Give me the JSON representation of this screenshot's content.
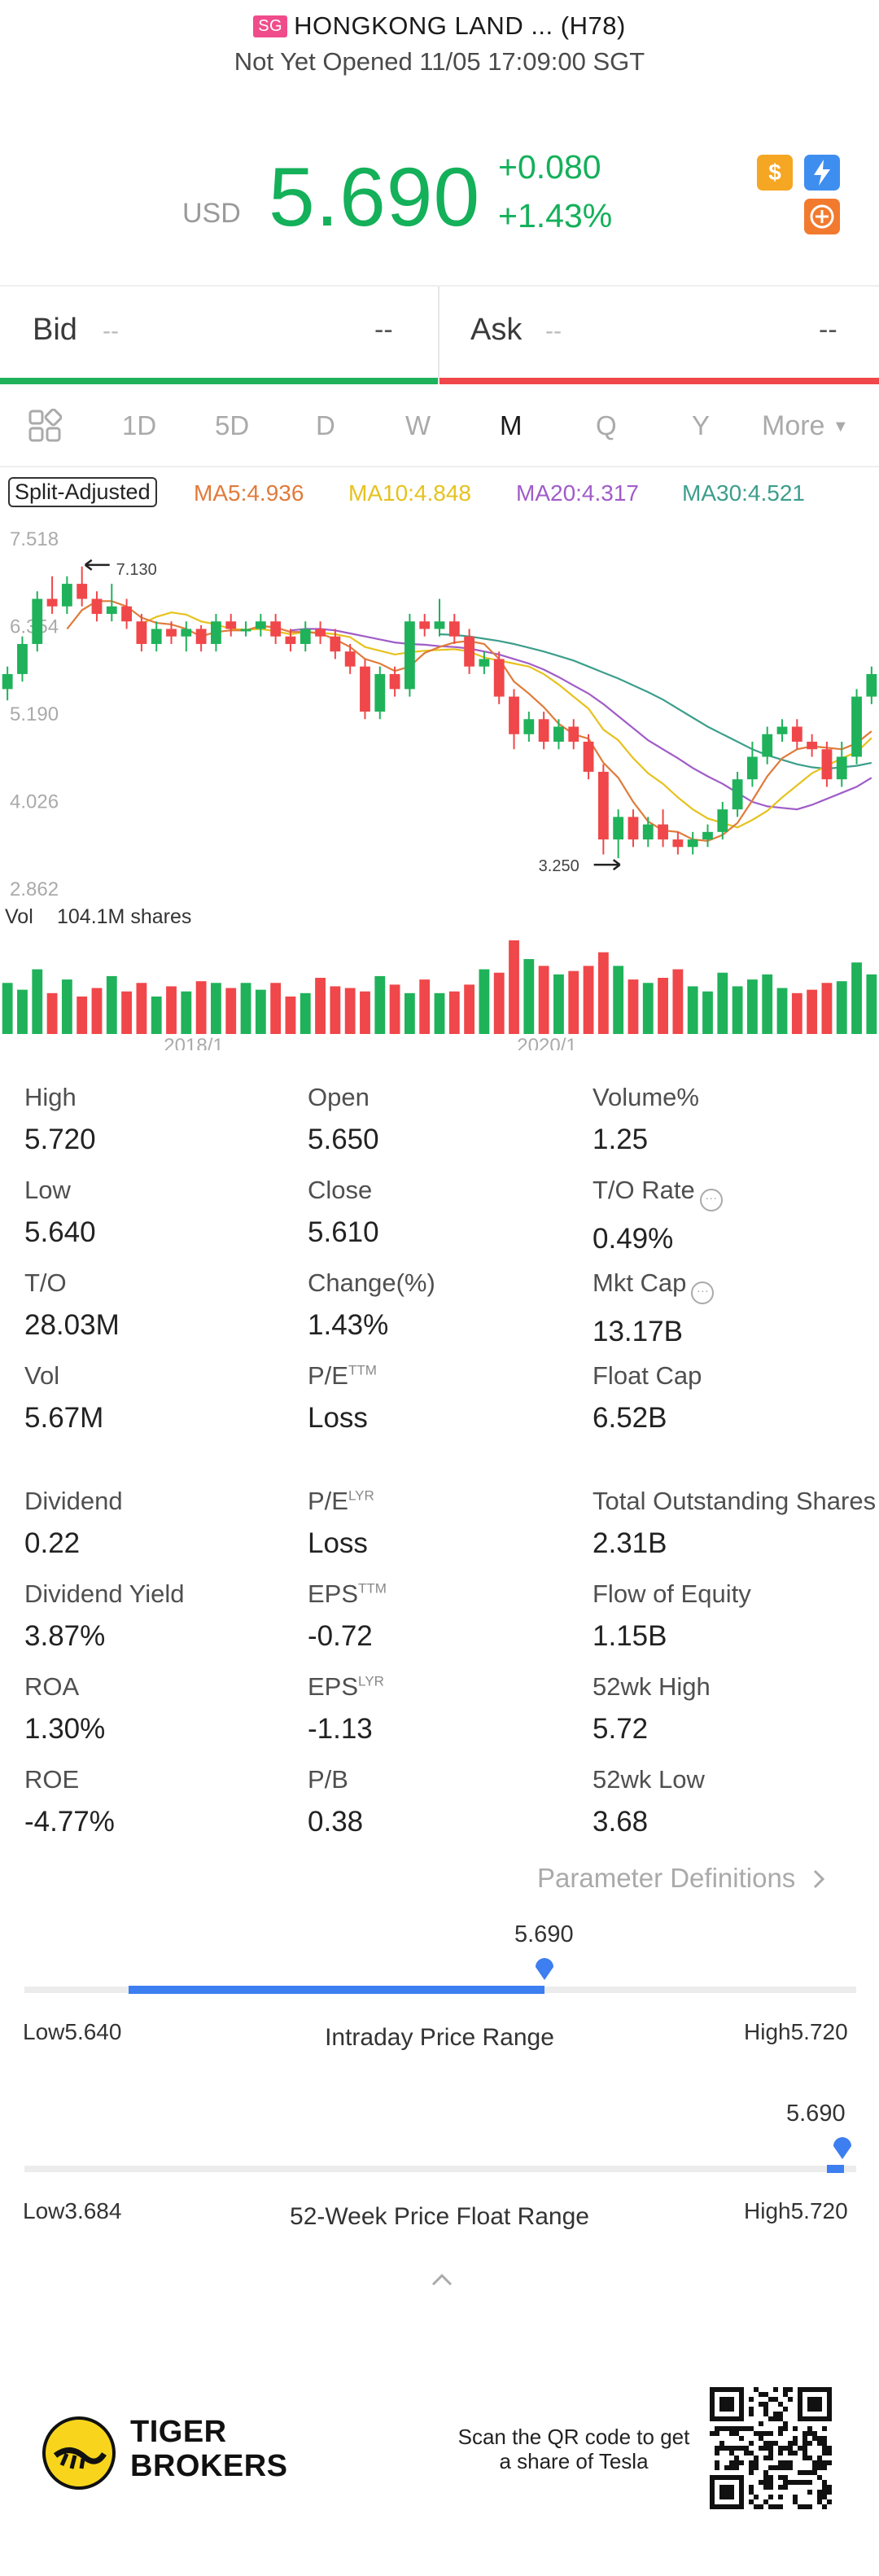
{
  "header": {
    "market_flag": "SG",
    "title": "HONGKONG LAND ... (H78)",
    "status": "Not Yet Opened 11/05 17:09:00 SGT"
  },
  "quote": {
    "currency": "USD",
    "price": "5.690",
    "change": "+0.080",
    "change_pct": "+1.43%",
    "color_up": "#14b05a",
    "icons": [
      "dollar-icon",
      "flash-icon",
      "options-icon"
    ]
  },
  "bidask": {
    "bid_label": "Bid",
    "bid_size": "--",
    "bid_price": "--",
    "ask_label": "Ask",
    "ask_size": "--",
    "ask_price": "--"
  },
  "tabs": {
    "items": [
      "1D",
      "5D",
      "D",
      "W",
      "M",
      "Q",
      "Y",
      "More"
    ],
    "active": "M"
  },
  "ma_legend": {
    "split_adjusted": "Split-Adjusted",
    "ma5": "MA5:4.936",
    "ma10": "MA10:4.848",
    "ma20": "MA20:4.317",
    "ma30": "MA30:4.521",
    "colors": {
      "ma5": "#e07b3a",
      "ma10": "#e6c21e",
      "ma20": "#a05cc8",
      "ma30": "#3c9e8c"
    }
  },
  "chart_data": {
    "type": "candlestick",
    "period": "monthly",
    "y_ticks": [
      "7.518",
      "6.354",
      "5.190",
      "4.026",
      "2.862"
    ],
    "ylim": [
      2.862,
      7.518
    ],
    "x_ticks": [
      "2018/1",
      "2020/1"
    ],
    "max_marker": "7.130",
    "min_marker": "3.250",
    "volume_label": "Vol",
    "volume_value": "104.1M shares",
    "candles": [
      [
        5.5,
        5.7,
        5.35,
        5.8,
        1
      ],
      [
        5.7,
        6.1,
        5.6,
        6.2,
        1
      ],
      [
        6.1,
        6.7,
        6.0,
        6.8,
        1
      ],
      [
        6.7,
        6.6,
        6.5,
        7.0,
        0
      ],
      [
        6.6,
        6.9,
        6.5,
        7.0,
        1
      ],
      [
        6.9,
        6.7,
        6.6,
        7.13,
        0
      ],
      [
        6.7,
        6.5,
        6.4,
        6.8,
        0
      ],
      [
        6.5,
        6.6,
        6.4,
        6.9,
        1
      ],
      [
        6.6,
        6.4,
        6.3,
        6.7,
        0
      ],
      [
        6.4,
        6.1,
        6.0,
        6.5,
        0
      ],
      [
        6.1,
        6.3,
        6.0,
        6.4,
        1
      ],
      [
        6.3,
        6.2,
        6.1,
        6.4,
        0
      ],
      [
        6.2,
        6.3,
        6.0,
        6.4,
        1
      ],
      [
        6.3,
        6.1,
        6.0,
        6.35,
        0
      ],
      [
        6.1,
        6.4,
        6.0,
        6.5,
        1
      ],
      [
        6.4,
        6.3,
        6.2,
        6.5,
        0
      ],
      [
        6.3,
        6.3,
        6.2,
        6.4,
        1
      ],
      [
        6.3,
        6.4,
        6.2,
        6.5,
        1
      ],
      [
        6.4,
        6.2,
        6.1,
        6.5,
        0
      ],
      [
        6.2,
        6.1,
        6.0,
        6.3,
        0
      ],
      [
        6.1,
        6.3,
        6.0,
        6.4,
        1
      ],
      [
        6.3,
        6.2,
        6.1,
        6.4,
        0
      ],
      [
        6.2,
        6.0,
        5.9,
        6.3,
        0
      ],
      [
        6.0,
        5.8,
        5.7,
        6.1,
        0
      ],
      [
        5.8,
        5.2,
        5.1,
        5.9,
        0
      ],
      [
        5.2,
        5.7,
        5.1,
        5.8,
        1
      ],
      [
        5.7,
        5.5,
        5.4,
        5.8,
        0
      ],
      [
        5.5,
        6.4,
        5.4,
        6.5,
        1
      ],
      [
        6.4,
        6.3,
        6.2,
        6.5,
        0
      ],
      [
        6.3,
        6.4,
        6.2,
        6.7,
        1
      ],
      [
        6.4,
        6.2,
        6.1,
        6.5,
        0
      ],
      [
        6.2,
        5.8,
        5.7,
        6.3,
        0
      ],
      [
        5.8,
        5.9,
        5.7,
        6.0,
        1
      ],
      [
        5.9,
        5.4,
        5.3,
        6.0,
        0
      ],
      [
        5.4,
        4.9,
        4.7,
        5.5,
        0
      ],
      [
        4.9,
        5.1,
        4.8,
        5.2,
        1
      ],
      [
        5.1,
        4.8,
        4.7,
        5.2,
        0
      ],
      [
        4.8,
        5.0,
        4.7,
        5.1,
        1
      ],
      [
        5.0,
        4.8,
        4.7,
        5.1,
        0
      ],
      [
        4.8,
        4.4,
        4.3,
        4.9,
        0
      ],
      [
        4.4,
        3.5,
        3.3,
        4.5,
        0
      ],
      [
        3.5,
        3.8,
        3.25,
        3.9,
        1
      ],
      [
        3.8,
        3.5,
        3.4,
        3.9,
        0
      ],
      [
        3.5,
        3.7,
        3.4,
        3.8,
        1
      ],
      [
        3.7,
        3.5,
        3.4,
        3.9,
        0
      ],
      [
        3.5,
        3.4,
        3.3,
        3.6,
        0
      ],
      [
        3.4,
        3.5,
        3.3,
        3.6,
        1
      ],
      [
        3.5,
        3.6,
        3.4,
        3.7,
        1
      ],
      [
        3.6,
        3.9,
        3.5,
        4.0,
        1
      ],
      [
        3.9,
        4.3,
        3.8,
        4.4,
        1
      ],
      [
        4.3,
        4.6,
        4.2,
        4.8,
        1
      ],
      [
        4.6,
        4.9,
        4.5,
        5.0,
        1
      ],
      [
        4.9,
        5.0,
        4.8,
        5.1,
        1
      ],
      [
        5.0,
        4.8,
        4.7,
        5.1,
        0
      ],
      [
        4.8,
        4.7,
        4.6,
        4.9,
        0
      ],
      [
        4.7,
        4.3,
        4.2,
        4.8,
        0
      ],
      [
        4.3,
        4.6,
        4.2,
        4.8,
        1
      ],
      [
        4.6,
        5.4,
        4.5,
        5.5,
        1
      ],
      [
        5.4,
        5.7,
        5.3,
        5.8,
        1
      ]
    ],
    "volumes": [
      30,
      26,
      38,
      24,
      32,
      22,
      27,
      34,
      25,
      30,
      22,
      28,
      25,
      31,
      30,
      27,
      30,
      26,
      30,
      22,
      24,
      33,
      28,
      27,
      25,
      34,
      29,
      24,
      32,
      24,
      25,
      29,
      38,
      36,
      55,
      44,
      40,
      35,
      37,
      40,
      48,
      40,
      32,
      30,
      33,
      38,
      28,
      25,
      36,
      28,
      32,
      35,
      27,
      24,
      26,
      30,
      31,
      42,
      35
    ],
    "ma5": [
      null,
      null,
      null,
      null,
      6.3,
      6.55,
      6.67,
      6.67,
      6.6,
      6.45,
      6.38,
      6.36,
      6.3,
      6.2,
      6.26,
      6.28,
      6.28,
      6.34,
      6.32,
      6.26,
      6.26,
      6.24,
      6.16,
      6.06,
      5.9,
      5.84,
      5.74,
      5.8,
      5.98,
      6.06,
      6.12,
      6.14,
      6.1,
      5.9,
      5.6,
      5.44,
      5.26,
      5.04,
      4.9,
      4.84,
      4.52,
      4.32,
      4.0,
      3.74,
      3.62,
      3.6,
      3.5,
      3.48,
      3.56,
      3.72,
      4.02,
      4.34,
      4.58,
      4.7,
      4.74,
      4.72,
      4.7,
      4.78,
      4.94
    ],
    "ma10": [
      null,
      null,
      null,
      null,
      null,
      null,
      null,
      null,
      null,
      6.37,
      6.46,
      6.52,
      6.49,
      6.4,
      6.36,
      6.3,
      6.29,
      6.3,
      6.27,
      6.23,
      6.26,
      6.25,
      6.23,
      6.19,
      6.06,
      6.01,
      5.96,
      5.99,
      6.01,
      6.02,
      6.03,
      6.0,
      5.92,
      5.88,
      5.84,
      5.8,
      5.7,
      5.56,
      5.4,
      5.24,
      4.96,
      4.82,
      4.58,
      4.38,
      4.24,
      4.06,
      3.9,
      3.78,
      3.72,
      3.66,
      3.76,
      3.88,
      4.06,
      4.22,
      4.38,
      4.48,
      4.58,
      4.66,
      4.85
    ],
    "ma20": [
      null,
      null,
      null,
      null,
      null,
      null,
      null,
      null,
      null,
      null,
      null,
      null,
      null,
      null,
      null,
      null,
      null,
      null,
      null,
      6.28,
      6.3,
      6.3,
      6.28,
      6.24,
      6.2,
      6.16,
      6.12,
      6.1,
      6.09,
      6.07,
      6.06,
      6.04,
      6.0,
      5.96,
      5.9,
      5.84,
      5.76,
      5.66,
      5.55,
      5.44,
      5.3,
      5.14,
      4.98,
      4.82,
      4.7,
      4.58,
      4.45,
      4.34,
      4.24,
      4.12,
      4.0,
      3.94,
      3.92,
      3.9,
      3.96,
      4.04,
      4.12,
      4.2,
      4.32
    ],
    "ma30": [
      null,
      null,
      null,
      null,
      null,
      null,
      null,
      null,
      null,
      null,
      null,
      null,
      null,
      null,
      null,
      null,
      null,
      null,
      null,
      null,
      null,
      null,
      null,
      null,
      null,
      null,
      null,
      null,
      null,
      6.23,
      6.22,
      6.2,
      6.17,
      6.14,
      6.1,
      6.05,
      6.0,
      5.94,
      5.88,
      5.8,
      5.72,
      5.64,
      5.55,
      5.46,
      5.36,
      5.24,
      5.12,
      5.0,
      4.9,
      4.8,
      4.7,
      4.62,
      4.56,
      4.5,
      4.46,
      4.44,
      4.46,
      4.48,
      4.52
    ]
  },
  "stats": {
    "col1": [
      {
        "label": "High",
        "value": "5.720"
      },
      {
        "label": "Low",
        "value": "5.640"
      },
      {
        "label": "T/O",
        "value": "28.03M"
      },
      {
        "label": "Vol",
        "value": "5.67M"
      },
      {
        "label": "Dividend",
        "value": "0.22"
      },
      {
        "label": "Dividend Yield",
        "value": "3.87%"
      },
      {
        "label": "ROA",
        "value": "1.30%"
      },
      {
        "label": "ROE",
        "value": "-4.77%"
      }
    ],
    "col2": [
      {
        "label": "Open",
        "value": "5.650"
      },
      {
        "label": "Close",
        "value": "5.610"
      },
      {
        "label": "Change(%)",
        "value": "1.43%"
      },
      {
        "label": "P/E",
        "sup": "TTM",
        "value": "Loss"
      },
      {
        "label": "P/E",
        "sup": "LYR",
        "value": "Loss"
      },
      {
        "label": "EPS",
        "sup": "TTM",
        "value": "-0.72"
      },
      {
        "label": "EPS",
        "sup": "LYR",
        "value": "-1.13"
      },
      {
        "label": "P/B",
        "value": "0.38"
      }
    ],
    "col3": [
      {
        "label": "Volume%",
        "value": "1.25"
      },
      {
        "label": "T/O Rate",
        "value": "0.49%"
      },
      {
        "label": "Mkt Cap",
        "value": "13.17B"
      },
      {
        "label": "Float Cap",
        "value": "6.52B"
      },
      {
        "label": "Total Outstanding Shares",
        "value": "2.31B"
      },
      {
        "label": "Flow of Equity",
        "value": "1.15B"
      },
      {
        "label": "52wk High",
        "value": "5.72"
      },
      {
        "label": "52wk Low",
        "value": "3.68"
      }
    ],
    "definitions_link": "Parameter Definitions"
  },
  "intraday_range": {
    "current": "5.690",
    "low": "Low5.640",
    "high": "High5.720",
    "title": "Intraday Price Range",
    "fill_start": 0.125,
    "fill_end": 0.625
  },
  "week52_range": {
    "current": "5.690",
    "low": "Low3.684",
    "high": "High5.720",
    "title": "52-Week Price Float Range",
    "fill_start": 0.965,
    "fill_end": 0.985
  },
  "footer": {
    "brand_line1": "TIGER",
    "brand_line2": "BROKERS",
    "scan_text": "Scan the QR code to get a share of Tesla"
  }
}
